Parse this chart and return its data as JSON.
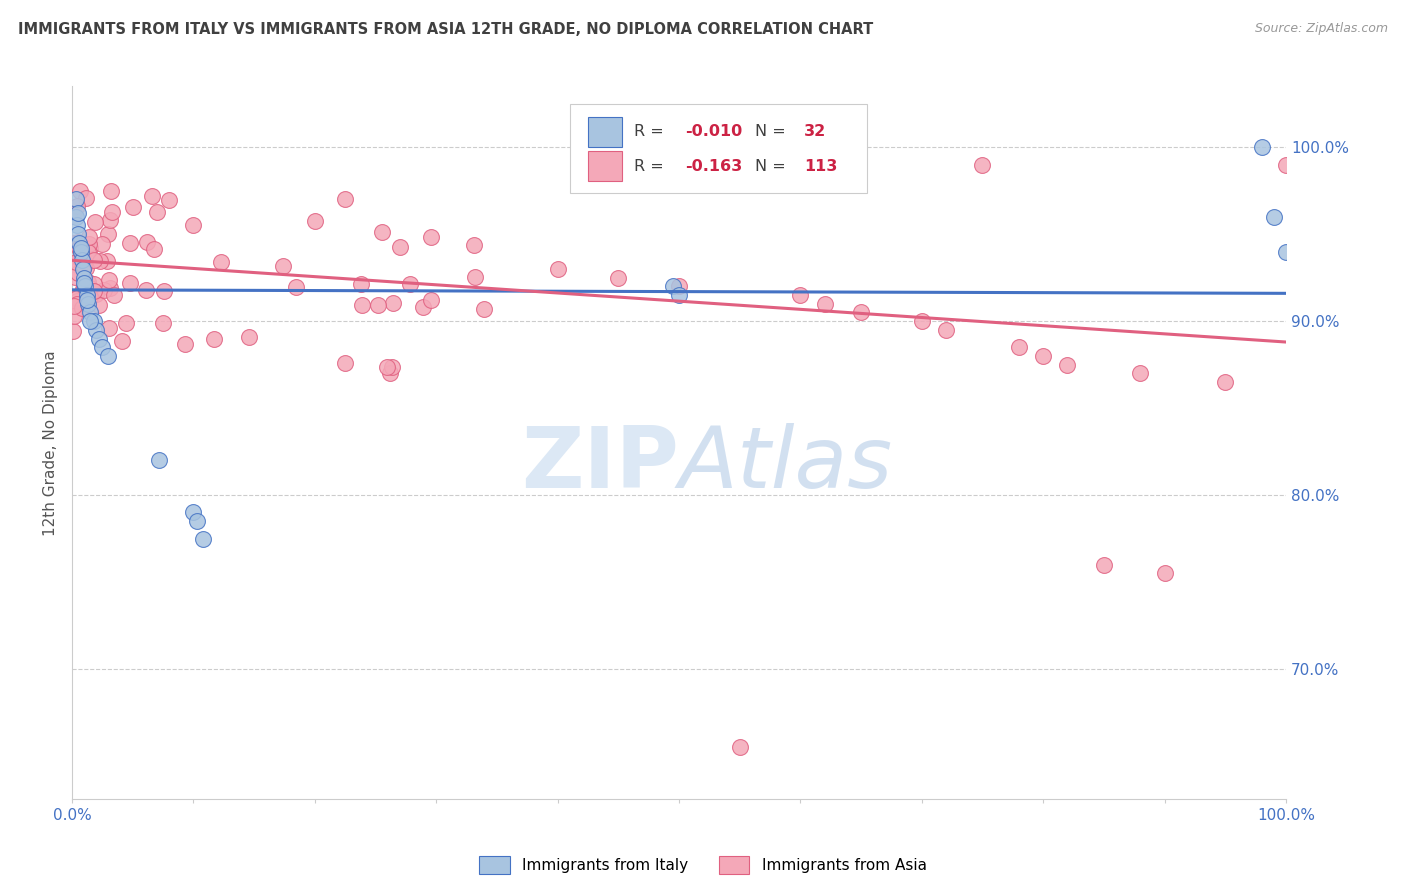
{
  "title": "IMMIGRANTS FROM ITALY VS IMMIGRANTS FROM ASIA 12TH GRADE, NO DIPLOMA CORRELATION CHART",
  "source": "Source: ZipAtlas.com",
  "ylabel": "12th Grade, No Diploma",
  "right_yticks": [
    0.7,
    0.8,
    0.9,
    1.0
  ],
  "right_yticklabels": [
    "70.0%",
    "80.0%",
    "90.0%",
    "100.0%"
  ],
  "legend_italy": "Immigrants from Italy",
  "legend_asia": "Immigrants from Asia",
  "r_italy": "-0.010",
  "n_italy": "32",
  "r_asia": "-0.163",
  "n_asia": "113",
  "color_italy": "#a8c4e0",
  "color_asia": "#f4a8b8",
  "line_italy": "#4472c4",
  "line_asia": "#e06080",
  "title_color": "#404040",
  "source_color": "#999999",
  "axis_label_color": "#4472c4",
  "watermark_color": "#dce8f5",
  "legend_text_color": "#404040",
  "legend_r_color": "#cc2244",
  "italy_trend_x": [
    0.0,
    1.0
  ],
  "italy_trend_y": [
    0.918,
    0.916
  ],
  "asia_trend_x": [
    0.0,
    1.0
  ],
  "asia_trend_y": [
    0.935,
    0.888
  ],
  "ylim_min": 0.625,
  "ylim_max": 1.035,
  "xlim_min": 0.0,
  "xlim_max": 1.0
}
